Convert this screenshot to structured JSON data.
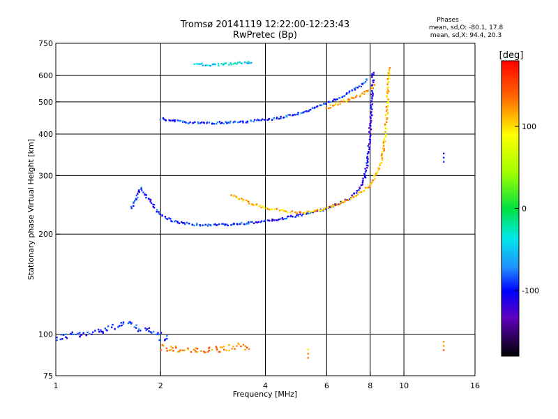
{
  "header": {
    "title_line1": "Tromsø 20141119 12:22:00-12:23:43",
    "title_line2": "RwPretec (Bp)",
    "stats_title": "Phases",
    "stats_o": "mean, sd,O: -80.1, 17.8",
    "stats_x": "mean, sd,X: 94.4, 20.3"
  },
  "chart_data": {
    "type": "scatter",
    "xlabel": "Frequency [MHz]",
    "ylabel": "Stationary phase Virtual Height [km]",
    "xscale": "log",
    "yscale": "log",
    "xlim": [
      1,
      16
    ],
    "ylim": [
      75,
      750
    ],
    "xticks": [
      1,
      2,
      4,
      6,
      8,
      10,
      16
    ],
    "yticks": [
      75,
      100,
      200,
      300,
      400,
      500,
      600,
      750
    ],
    "x_gridlines": [
      2,
      4,
      6,
      8,
      10
    ],
    "y_gridlines": [
      100,
      200,
      300,
      400,
      500,
      600
    ],
    "grid": true,
    "colorbar": {
      "label": "[deg]",
      "range": [
        -180,
        180
      ],
      "ticks": [
        100,
        0,
        -100
      ],
      "colormap": "rainbow"
    },
    "traces": [
      {
        "f": [
          1.0,
          1.1,
          1.2,
          1.3,
          1.4,
          1.5,
          1.6,
          1.7,
          1.8,
          1.9,
          2.0,
          2.1
        ],
        "h": [
          97,
          100,
          99,
          102,
          104,
          106,
          108,
          105,
          103,
          101,
          98,
          97
        ],
        "phase": -95
      },
      {
        "f": [
          2.0,
          2.3,
          2.6,
          3.0,
          3.3,
          3.6
        ],
        "h": [
          91,
          90,
          89,
          90,
          92,
          90
        ],
        "phase": 130
      },
      {
        "f": [
          1.65,
          1.75,
          1.85,
          1.95,
          2.05,
          2.2,
          2.5,
          2.8,
          3.2,
          3.6,
          4.0,
          4.5,
          5.0,
          5.5,
          6.0
        ],
        "h": [
          240,
          275,
          255,
          235,
          225,
          218,
          214,
          213,
          214,
          216,
          219,
          223,
          228,
          233,
          239
        ],
        "phase": -95
      },
      {
        "f": [
          6.0,
          6.5,
          7.0,
          7.4,
          7.7,
          7.85,
          7.95,
          8.02,
          8.08,
          8.12,
          8.15
        ],
        "h": [
          239,
          247,
          258,
          272,
          295,
          330,
          380,
          440,
          500,
          560,
          620
        ],
        "phase": -110
      },
      {
        "f": [
          3.2,
          3.6,
          4.0,
          4.5,
          5.0,
          5.5,
          6.0,
          6.5,
          7.0,
          7.5,
          8.0,
          8.3,
          8.6,
          8.8,
          8.9,
          9.0,
          9.05
        ],
        "h": [
          262,
          248,
          240,
          235,
          232,
          234,
          240,
          247,
          256,
          267,
          282,
          300,
          330,
          380,
          450,
          540,
          640
        ],
        "phase": 110
      },
      {
        "f": [
          2.0,
          2.3,
          2.6,
          3.0,
          3.5,
          4.0,
          4.5,
          5.0,
          5.5,
          6.0,
          6.5,
          7.0,
          7.5,
          7.9
        ],
        "h": [
          445,
          435,
          432,
          433,
          436,
          442,
          450,
          462,
          478,
          495,
          515,
          535,
          560,
          590
        ],
        "phase": -90
      },
      {
        "f": [
          6.0,
          6.5,
          7.0,
          7.5,
          8.0,
          8.3
        ],
        "h": [
          480,
          495,
          510,
          525,
          545,
          570
        ],
        "phase": 115
      },
      {
        "f": [
          2.5,
          2.8,
          3.1,
          3.4,
          3.7
        ],
        "h": [
          650,
          645,
          650,
          655,
          660
        ],
        "phase": -40
      },
      {
        "f": [
          5.3
        ],
        "h": [
          90
        ],
        "phase": 110
      },
      {
        "f": [
          13.0
        ],
        "h": [
          350
        ],
        "phase": -100
      },
      {
        "f": [
          13.0
        ],
        "h": [
          95
        ],
        "phase": 130
      }
    ]
  }
}
